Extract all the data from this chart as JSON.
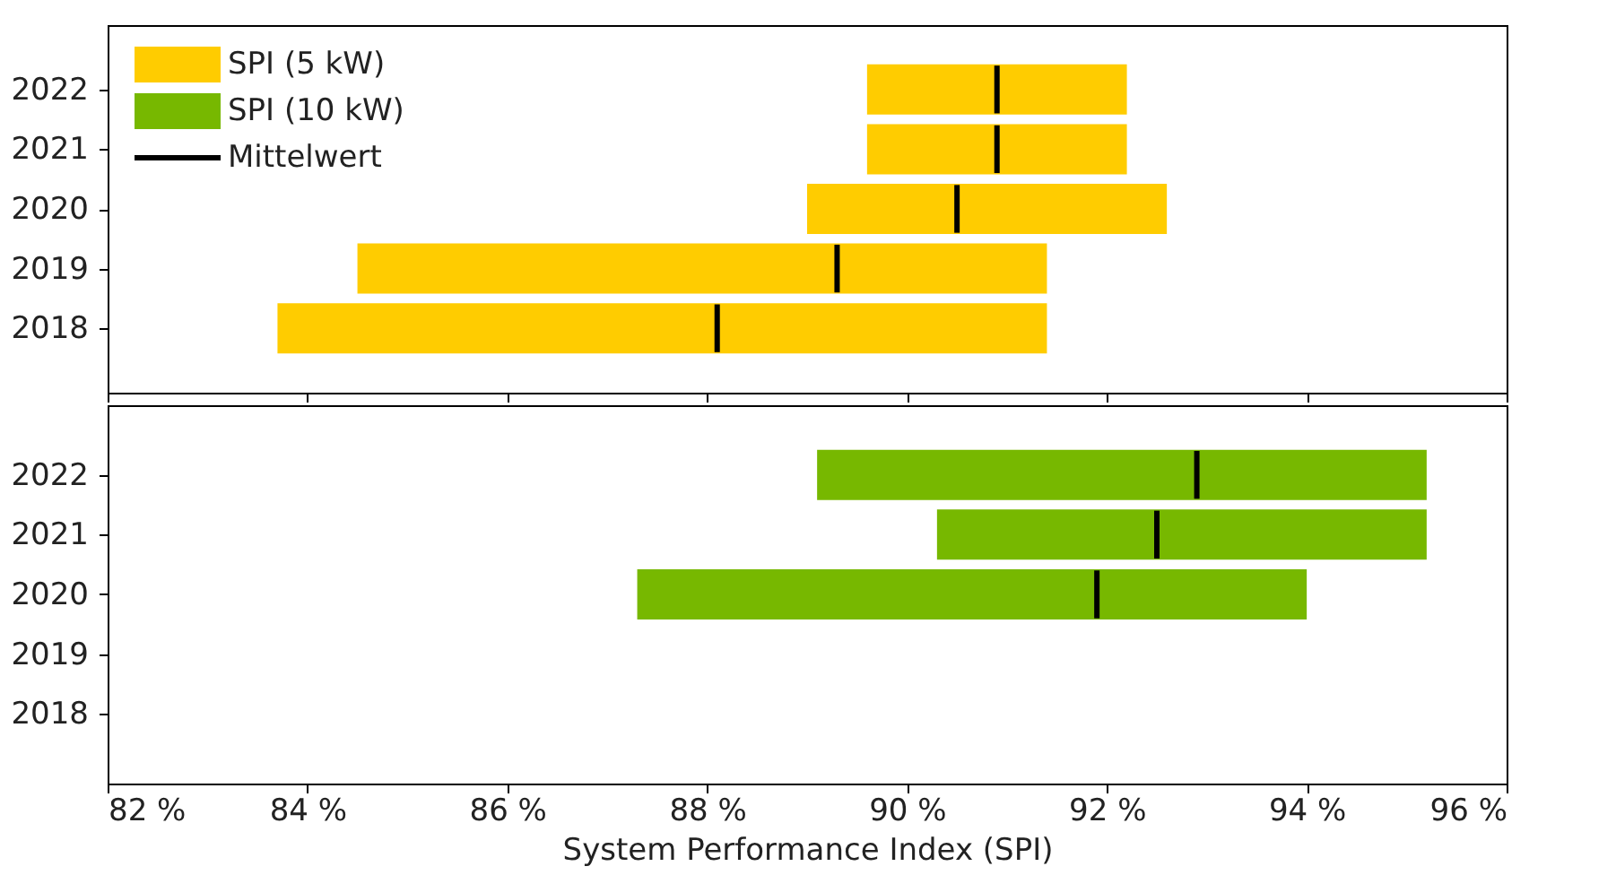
{
  "chart_data": [
    {
      "type": "box",
      "orientation": "horizontal",
      "categories": [
        "2022",
        "2021",
        "2020",
        "2019",
        "2018"
      ],
      "xlim": [
        82,
        96
      ],
      "xticks": [
        {
          "value": 82,
          "label": null
        },
        {
          "value": 84,
          "label": null
        },
        {
          "value": 86,
          "label": null
        },
        {
          "value": 88,
          "label": null
        },
        {
          "value": 90,
          "label": null
        },
        {
          "value": 92,
          "label": null
        },
        {
          "value": 94,
          "label": null
        },
        {
          "value": 96,
          "label": null
        }
      ],
      "tick_labels": "y",
      "legend": "top left",
      "grid": false,
      "series": [
        {
          "name": "SPI (5 kW)",
          "color": "#ffcc00",
          "boxes": [
            {
              "low": 89.6,
              "q1": 89.6,
              "median": 90.9,
              "q3": 92.2,
              "high": 92.2
            },
            {
              "low": 89.6,
              "q1": 89.6,
              "median": 90.9,
              "q3": 92.2,
              "high": 92.2
            },
            {
              "low": 89.0,
              "q1": 89.0,
              "median": 90.5,
              "q3": 92.6,
              "high": 92.6
            },
            {
              "low": 84.5,
              "q1": 84.5,
              "median": 89.3,
              "q3": 91.4,
              "high": 91.4
            },
            {
              "low": 83.7,
              "q1": 83.7,
              "median": 88.1,
              "q3": 91.4,
              "high": 91.4
            }
          ]
        },
        {
          "name": "SPI (10 kW)",
          "color": "#77b800",
          "boxes": [
            null,
            null,
            null,
            null,
            null
          ]
        },
        {
          "name": "Mittelwert",
          "type": "line",
          "color": "#000000",
          "values": [
            null,
            null,
            null,
            null,
            null
          ]
        }
      ]
    },
    {
      "type": "box",
      "orientation": "horizontal",
      "categories": [
        "2022",
        "2021",
        "2020",
        "2019",
        "2018"
      ],
      "xlim": [
        82,
        96
      ],
      "xticks": [
        {
          "value": 82,
          "label": "82 %"
        },
        {
          "value": 84,
          "label": "84 %"
        },
        {
          "value": 86,
          "label": "86 %"
        },
        {
          "value": 88,
          "label": "88 %"
        },
        {
          "value": 90,
          "label": "90 %"
        },
        {
          "value": 92,
          "label": "92 %"
        },
        {
          "value": 94,
          "label": "94 %"
        },
        {
          "value": 96,
          "label": "96 %"
        }
      ],
      "xlabel": "System Performance Index (SPI)",
      "grid": false,
      "series": [
        {
          "color": "#77b800",
          "boxes": [
            {
              "low": 89.1,
              "q1": 89.1,
              "median": 92.9,
              "q3": 95.2,
              "high": 95.2
            },
            {
              "low": 90.3,
              "q1": 90.3,
              "median": 92.5,
              "q3": 95.2,
              "high": 95.2
            },
            {
              "low": 87.3,
              "q1": 87.3,
              "median": 91.9,
              "q3": 94.0,
              "high": 94.0
            },
            null,
            null
          ]
        }
      ]
    }
  ]
}
